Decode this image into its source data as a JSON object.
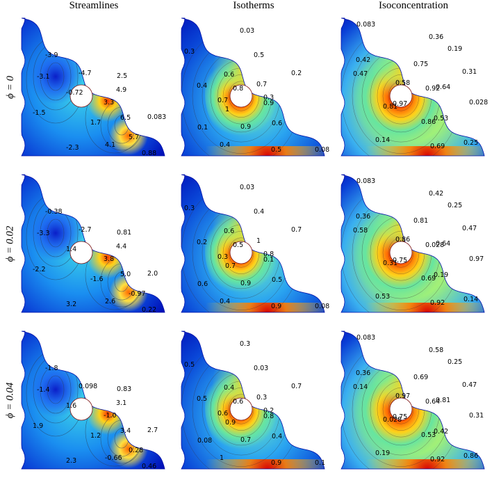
{
  "columns": [
    "Streamlines",
    "Isotherms",
    "Isoconcentration"
  ],
  "rows": [
    "ϕ = 0",
    "ϕ = 0.02",
    "ϕ = 0.04"
  ],
  "chart_data": {
    "type": "heatmap",
    "panels": [
      {
        "row": 0,
        "col": 0,
        "kind": "streamlines",
        "labels": [
          "-3.9",
          "-4.7",
          "-3.1",
          "-0.72",
          "-1.5",
          "-2.3",
          "2.5",
          "4.9",
          "3.3",
          "1.7",
          "6.5",
          "0.083",
          "5.7",
          "4.1",
          "0.88"
        ]
      },
      {
        "row": 0,
        "col": 1,
        "kind": "isotherms",
        "labels": [
          "0.03",
          "0.3",
          "0.5",
          "0.6",
          "0.2",
          "0.4",
          "0.8",
          "0.7",
          "0.3",
          "0.7",
          "0.9",
          "1",
          "0.6",
          "0.1",
          "0.9",
          "0.4",
          "0.5",
          "0.08"
        ]
      },
      {
        "row": 0,
        "col": 2,
        "kind": "isoconcentration",
        "labels": [
          "0.083",
          "0.36",
          "0.19",
          "0.42",
          "0.75",
          "0.47",
          "0.31",
          "0.58",
          "0.92",
          "0.64",
          "0.97",
          "0.028",
          "0.81",
          "0.53",
          "0.86",
          "0.14",
          "0.69",
          "0.25"
        ]
      },
      {
        "row": 1,
        "col": 0,
        "kind": "streamlines",
        "labels": [
          "-0.38",
          "-2.7",
          "-3.3",
          "1.4",
          "-2.2",
          "3.2",
          "0.81",
          "4.4",
          "3.8",
          "-1.6",
          "5.0",
          "2.0",
          "-0.97",
          "2.6",
          "0.22"
        ]
      },
      {
        "row": 1,
        "col": 1,
        "kind": "isotherms",
        "labels": [
          "0.03",
          "0.3",
          "0.4",
          "0.6",
          "0.7",
          "0.2",
          "0.5",
          "1",
          "0.8",
          "0.3",
          "0.1",
          "0.7",
          "0.5",
          "0.6",
          "0.9",
          "0.4",
          "0.9",
          "0.08"
        ]
      },
      {
        "row": 1,
        "col": 2,
        "kind": "isoconcentration",
        "labels": [
          "0.083",
          "0.42",
          "0.25",
          "0.36",
          "0.81",
          "0.58",
          "0.47",
          "0.86",
          "0.028",
          "0.64",
          "0.75",
          "0.97",
          "0.31",
          "0.19",
          "0.69",
          "0.53",
          "0.92",
          "0.14"
        ]
      },
      {
        "row": 2,
        "col": 0,
        "kind": "streamlines",
        "labels": [
          "-1.8",
          "0.098",
          "-1.4",
          "1.6",
          "1.9",
          "2.3",
          "0.83",
          "3.1",
          "-1.0",
          "1.2",
          "3.4",
          "2.7",
          "0.28",
          "-0.66",
          "0.46"
        ]
      },
      {
        "row": 2,
        "col": 1,
        "kind": "isotherms",
        "labels": [
          "0.3",
          "0.5",
          "0.03",
          "0.4",
          "0.7",
          "0.5",
          "0.6",
          "0.3",
          "0.2",
          "0.6",
          "0.8",
          "0.9",
          "0.4",
          "0.08",
          "0.7",
          "1",
          "0.9",
          "0.1"
        ]
      },
      {
        "row": 2,
        "col": 2,
        "kind": "isoconcentration",
        "labels": [
          "0.083",
          "0.58",
          "0.25",
          "0.36",
          "0.69",
          "0.14",
          "0.47",
          "0.97",
          "0.64",
          "0.81",
          "0.75",
          "0.31",
          "0.028",
          "0.42",
          "0.53",
          "0.19",
          "0.92",
          "0.86"
        ]
      }
    ]
  }
}
